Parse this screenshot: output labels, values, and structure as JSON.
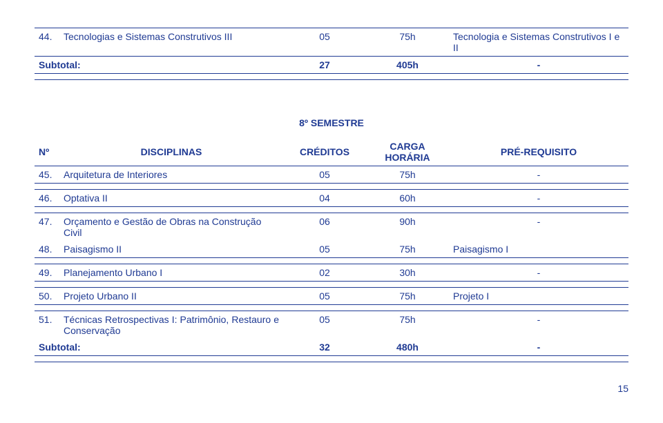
{
  "text_color": "#1f3a93",
  "top_row": {
    "num": "44.",
    "name": "Tecnologias e Sistemas Construtivos III",
    "cred": "05",
    "carga": "75h",
    "prereq": "Tecnologia e Sistemas Construtivos I e II"
  },
  "subtotal1": {
    "label": "Subtotal:",
    "cred": "27",
    "carga": "405h",
    "prereq": "-"
  },
  "semester_title": "8º SEMESTRE",
  "header": {
    "num": "Nº",
    "disc": "DISCIPLINAS",
    "cred": "CRÉDITOS",
    "carga": "CARGA HORÁRIA",
    "prereq": "PRÉ-REQUISITO"
  },
  "rows": [
    {
      "num": "45.",
      "name": "Arquitetura de Interiores",
      "cred": "05",
      "carga": "75h",
      "prereq": "-"
    },
    {
      "num": "46.",
      "name": "Optativa II",
      "cred": "04",
      "carga": "60h",
      "prereq": "-"
    },
    {
      "num": "47.",
      "name": "Orçamento e Gestão de Obras na Construção Civil",
      "cred": "06",
      "carga": "90h",
      "prereq": "-"
    },
    {
      "num": "48.",
      "name": "Paisagismo II",
      "cred": "05",
      "carga": "75h",
      "prereq": "Paisagismo I"
    },
    {
      "num": "49.",
      "name": "Planejamento Urbano I",
      "cred": "02",
      "carga": "30h",
      "prereq": "-"
    },
    {
      "num": "50.",
      "name": "Projeto Urbano II",
      "cred": "05",
      "carga": "75h",
      "prereq": "Projeto I"
    },
    {
      "num": "51.",
      "name": "Técnicas Retrospectivas I: Patrimônio, Restauro e Conservação",
      "cred": "05",
      "carga": "75h",
      "prereq": "-"
    }
  ],
  "subtotal2": {
    "label": "Subtotal:",
    "cred": "32",
    "carga": "480h",
    "prereq": "-"
  },
  "page_number": "15"
}
